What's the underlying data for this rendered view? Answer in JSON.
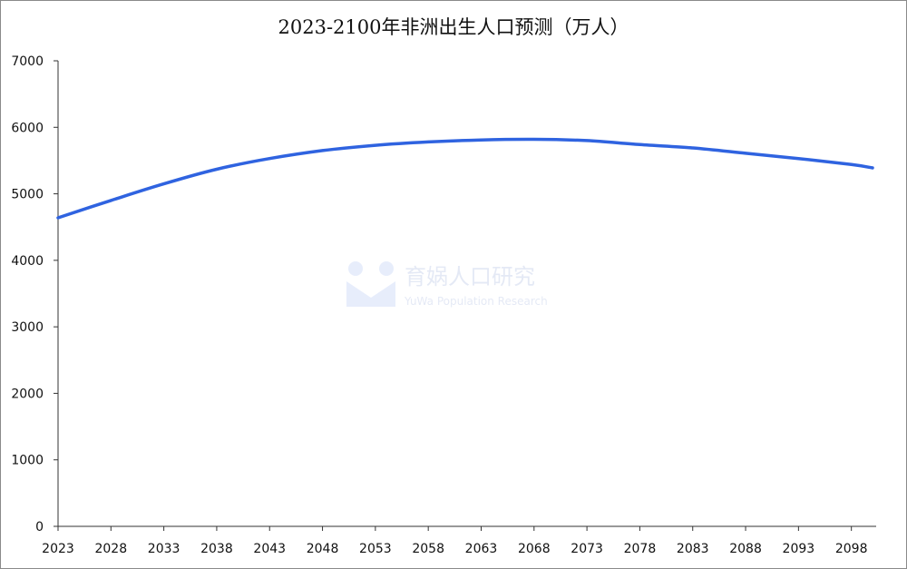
{
  "watermark": {
    "name": "育娲人口研究",
    "subtitle": "YuWa Population Research"
  },
  "chart_data": {
    "type": "line",
    "title": "2023-2100年非洲出生人口预测（万人）",
    "xlabel": "",
    "ylabel": "",
    "x_tick_labels": [
      "2023",
      "2028",
      "2033",
      "2038",
      "2043",
      "2048",
      "2053",
      "2058",
      "2063",
      "2068",
      "2073",
      "2078",
      "2083",
      "2088",
      "2093",
      "2098"
    ],
    "y_tick_labels": [
      "0",
      "1000",
      "2000",
      "3000",
      "4000",
      "5000",
      "6000",
      "7000"
    ],
    "ylim": [
      0,
      7000
    ],
    "xlim": [
      2023,
      2100
    ],
    "grid": false,
    "line_color": "#2f63e0",
    "series": [
      {
        "x": [
          2023,
          2028,
          2033,
          2038,
          2043,
          2048,
          2053,
          2058,
          2063,
          2068,
          2073,
          2078,
          2083,
          2088,
          2093,
          2098,
          2100
        ],
        "values": [
          4640,
          4900,
          5150,
          5370,
          5530,
          5650,
          5730,
          5780,
          5810,
          5820,
          5800,
          5740,
          5690,
          5610,
          5530,
          5440,
          5390
        ]
      }
    ]
  }
}
